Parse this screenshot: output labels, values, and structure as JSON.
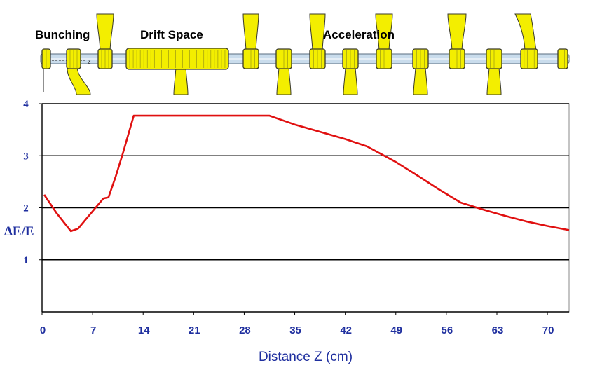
{
  "beamline": {
    "sections": [
      "Bunching",
      "Drift Space",
      "Acceleration"
    ],
    "axis_marker": "z",
    "colors": {
      "component": "#f3ee00",
      "outline": "#3a3a2a",
      "pipe": "#c9dcec"
    }
  },
  "chart_data": {
    "type": "line",
    "title": "",
    "xlabel": "Distance Z (cm)",
    "ylabel": "ΔE/E",
    "xlim": [
      0,
      73
    ],
    "ylim": [
      0,
      4
    ],
    "xticks": [
      0,
      7,
      14,
      21,
      28,
      35,
      42,
      49,
      56,
      63,
      70
    ],
    "yticks": [
      1,
      2,
      3,
      4
    ],
    "grid": "horizontal",
    "legend": "none",
    "series": [
      {
        "color": "#e01010",
        "x": [
          0.3,
          2.0,
          4.0,
          5.0,
          6.5,
          8.5,
          9.2,
          10.2,
          11.2,
          12.7,
          20.0,
          28.0,
          31.5,
          35.0,
          38.0,
          42.0,
          45.0,
          49.0,
          52.0,
          55.0,
          58.0,
          61.0,
          64.0,
          67.0,
          70.0,
          73.0
        ],
        "y": [
          2.25,
          1.9,
          1.55,
          1.6,
          1.85,
          2.18,
          2.2,
          2.6,
          3.05,
          3.77,
          3.77,
          3.77,
          3.77,
          3.6,
          3.48,
          3.32,
          3.18,
          2.88,
          2.62,
          2.35,
          2.1,
          1.97,
          1.85,
          1.74,
          1.65,
          1.57
        ]
      }
    ]
  }
}
